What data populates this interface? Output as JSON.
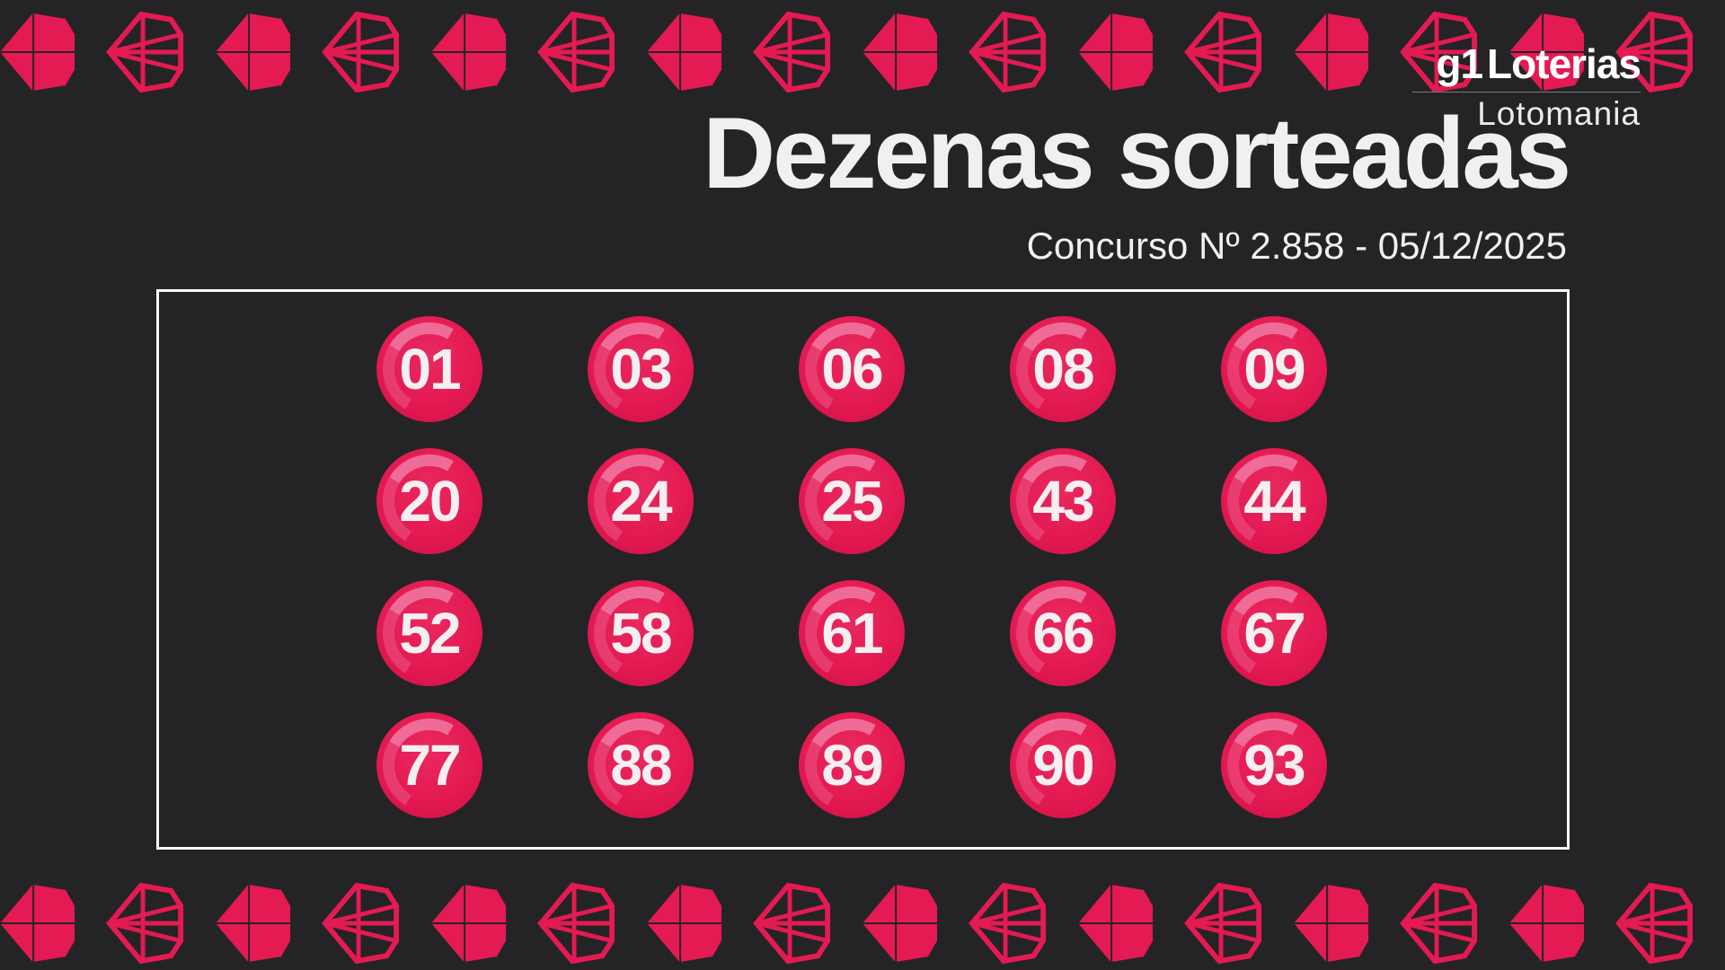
{
  "page": {
    "background_color": "#242426",
    "accent_pink": "#e41a52",
    "highlight_pink": "#f0709c",
    "text_color": "#f2f0ee"
  },
  "brand": {
    "g1": "g1",
    "loterias": "Loterias",
    "product": "Lotomania"
  },
  "header": {
    "title": "Dezenas sorteadas",
    "contest_line": "Concurso Nº 2.858 -  05/12/2025"
  },
  "board": {
    "columns": 5,
    "rows": 4,
    "numbers": [
      "01",
      "03",
      "06",
      "08",
      "09",
      "20",
      "24",
      "25",
      "43",
      "44",
      "52",
      "58",
      "61",
      "66",
      "67",
      "77",
      "88",
      "89",
      "90",
      "93"
    ]
  },
  "decor": {
    "gem_icon": "diamond-gem-icon",
    "gems_per_row": 17,
    "pattern": [
      "solid",
      "outline"
    ]
  }
}
